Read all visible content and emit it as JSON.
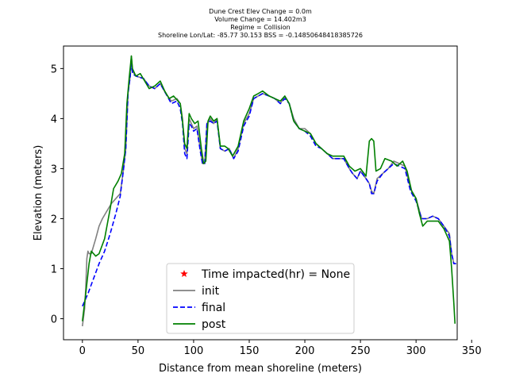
{
  "chart_data": {
    "type": "line",
    "title_lines": [
      "Dune Crest Elev Change = 0.0m",
      "Volume Change = 14.402m3",
      "Regime = Collision",
      "Shoreline Lon/Lat: -85.77 30.153   BSS = -0.14850648418385726"
    ],
    "xlabel": "Distance from mean shoreline (meters)",
    "ylabel": "Elevation (meters)",
    "xlim": [
      -17,
      337
    ],
    "ylim": [
      -0.42,
      5.45
    ],
    "xticks": [
      0,
      50,
      100,
      150,
      200,
      250,
      300,
      350
    ],
    "yticks": [
      0,
      1,
      2,
      3,
      4,
      5
    ],
    "legend": {
      "placement": "lower-center",
      "entries": [
        {
          "label": "Time impacted(hr) = None",
          "marker": "star",
          "color": "#ff0000"
        },
        {
          "label": "init",
          "style": "solid",
          "color": "#808080"
        },
        {
          "label": "final",
          "style": "dashed",
          "color": "#0000ff"
        },
        {
          "label": "post",
          "style": "solid",
          "color": "#008000"
        }
      ]
    },
    "series": [
      {
        "name": "init",
        "color": "#808080",
        "style": "solid",
        "points": [
          [
            0,
            -0.15
          ],
          [
            2,
            0.2
          ],
          [
            3,
            0.6
          ],
          [
            4,
            1.2
          ],
          [
            5,
            1.35
          ],
          [
            6,
            1.3
          ],
          [
            8,
            1.3
          ],
          [
            12,
            1.6
          ],
          [
            15,
            1.85
          ],
          [
            18,
            2.0
          ],
          [
            22,
            2.15
          ],
          [
            26,
            2.3
          ],
          [
            30,
            2.4
          ],
          [
            34,
            2.5
          ],
          [
            37,
            3.0
          ],
          [
            39,
            3.4
          ],
          [
            41,
            4.5
          ],
          [
            43,
            4.85
          ],
          [
            44,
            5.25
          ],
          [
            45,
            4.95
          ],
          [
            48,
            4.85
          ],
          [
            55,
            4.8
          ],
          [
            60,
            4.65
          ],
          [
            65,
            4.6
          ],
          [
            70,
            4.7
          ],
          [
            75,
            4.5
          ],
          [
            80,
            4.35
          ],
          [
            85,
            4.4
          ],
          [
            88,
            4.3
          ],
          [
            90,
            4.0
          ],
          [
            92,
            3.4
          ],
          [
            94,
            3.3
          ],
          [
            96,
            4.0
          ],
          [
            98,
            3.9
          ],
          [
            100,
            3.8
          ],
          [
            103,
            3.85
          ],
          [
            106,
            3.4
          ],
          [
            108,
            3.1
          ],
          [
            110,
            3.1
          ],
          [
            112,
            3.9
          ],
          [
            115,
            4.0
          ],
          [
            118,
            3.9
          ],
          [
            121,
            4.0
          ],
          [
            124,
            3.4
          ],
          [
            128,
            3.35
          ],
          [
            132,
            3.4
          ],
          [
            136,
            3.2
          ],
          [
            140,
            3.4
          ],
          [
            145,
            3.9
          ],
          [
            150,
            4.1
          ],
          [
            154,
            4.4
          ],
          [
            158,
            4.45
          ],
          [
            162,
            4.5
          ],
          [
            168,
            4.45
          ],
          [
            173,
            4.4
          ],
          [
            178,
            4.3
          ],
          [
            182,
            4.45
          ],
          [
            186,
            4.3
          ],
          [
            190,
            4.0
          ],
          [
            195,
            3.8
          ],
          [
            200,
            3.8
          ],
          [
            205,
            3.7
          ],
          [
            210,
            3.5
          ],
          [
            215,
            3.4
          ],
          [
            220,
            3.3
          ],
          [
            225,
            3.2
          ],
          [
            230,
            3.2
          ],
          [
            235,
            3.2
          ],
          [
            240,
            3.0
          ],
          [
            243,
            2.9
          ],
          [
            247,
            2.8
          ],
          [
            250,
            2.95
          ],
          [
            255,
            2.8
          ],
          [
            258,
            2.7
          ],
          [
            260,
            2.55
          ],
          [
            262,
            2.5
          ],
          [
            265,
            2.8
          ],
          [
            270,
            2.9
          ],
          [
            275,
            3.0
          ],
          [
            280,
            3.15
          ],
          [
            285,
            3.1
          ],
          [
            290,
            3.05
          ],
          [
            295,
            2.6
          ],
          [
            300,
            2.4
          ],
          [
            305,
            2.0
          ],
          [
            310,
            2.0
          ],
          [
            315,
            2.05
          ],
          [
            320,
            2.0
          ],
          [
            325,
            1.85
          ],
          [
            330,
            1.7
          ],
          [
            332,
            1.3
          ],
          [
            334,
            1.1
          ],
          [
            336,
            1.1
          ]
        ]
      },
      {
        "name": "final",
        "color": "#0000ff",
        "style": "dashed",
        "points": [
          [
            0,
            0.25
          ],
          [
            5,
            0.5
          ],
          [
            10,
            0.8
          ],
          [
            15,
            1.1
          ],
          [
            20,
            1.35
          ],
          [
            25,
            1.7
          ],
          [
            30,
            2.1
          ],
          [
            34,
            2.45
          ],
          [
            37,
            3.0
          ],
          [
            39,
            3.4
          ],
          [
            41,
            4.5
          ],
          [
            43,
            4.85
          ],
          [
            44,
            5.2
          ],
          [
            45,
            4.9
          ],
          [
            48,
            4.85
          ],
          [
            55,
            4.8
          ],
          [
            60,
            4.65
          ],
          [
            65,
            4.6
          ],
          [
            70,
            4.7
          ],
          [
            75,
            4.5
          ],
          [
            80,
            4.3
          ],
          [
            85,
            4.35
          ],
          [
            88,
            4.2
          ],
          [
            90,
            3.9
          ],
          [
            92,
            3.3
          ],
          [
            94,
            3.2
          ],
          [
            96,
            3.9
          ],
          [
            98,
            3.85
          ],
          [
            100,
            3.75
          ],
          [
            103,
            3.8
          ],
          [
            106,
            3.35
          ],
          [
            108,
            3.1
          ],
          [
            110,
            3.1
          ],
          [
            112,
            3.9
          ],
          [
            115,
            3.95
          ],
          [
            118,
            3.9
          ],
          [
            121,
            3.95
          ],
          [
            124,
            3.4
          ],
          [
            128,
            3.35
          ],
          [
            132,
            3.4
          ],
          [
            136,
            3.2
          ],
          [
            140,
            3.35
          ],
          [
            145,
            3.85
          ],
          [
            150,
            4.05
          ],
          [
            154,
            4.4
          ],
          [
            158,
            4.45
          ],
          [
            162,
            4.5
          ],
          [
            168,
            4.45
          ],
          [
            173,
            4.4
          ],
          [
            178,
            4.3
          ],
          [
            182,
            4.4
          ],
          [
            186,
            4.3
          ],
          [
            190,
            3.95
          ],
          [
            195,
            3.8
          ],
          [
            200,
            3.75
          ],
          [
            205,
            3.65
          ],
          [
            210,
            3.45
          ],
          [
            215,
            3.4
          ],
          [
            220,
            3.3
          ],
          [
            225,
            3.2
          ],
          [
            230,
            3.2
          ],
          [
            235,
            3.2
          ],
          [
            240,
            3.0
          ],
          [
            243,
            2.9
          ],
          [
            247,
            2.8
          ],
          [
            250,
            2.95
          ],
          [
            255,
            2.8
          ],
          [
            258,
            2.7
          ],
          [
            260,
            2.5
          ],
          [
            262,
            2.5
          ],
          [
            265,
            2.75
          ],
          [
            270,
            2.9
          ],
          [
            275,
            3.0
          ],
          [
            280,
            3.1
          ],
          [
            285,
            3.05
          ],
          [
            290,
            3.0
          ],
          [
            295,
            2.55
          ],
          [
            300,
            2.35
          ],
          [
            305,
            2.0
          ],
          [
            310,
            2.0
          ],
          [
            315,
            2.05
          ],
          [
            320,
            2.0
          ],
          [
            325,
            1.85
          ],
          [
            330,
            1.65
          ],
          [
            332,
            1.3
          ],
          [
            334,
            1.1
          ],
          [
            336,
            1.1
          ]
        ]
      },
      {
        "name": "post",
        "color": "#008000",
        "style": "solid",
        "points": [
          [
            0,
            -0.05
          ],
          [
            3,
            0.5
          ],
          [
            5,
            0.9
          ],
          [
            6,
            1.1
          ],
          [
            8,
            1.35
          ],
          [
            12,
            1.25
          ],
          [
            15,
            1.3
          ],
          [
            20,
            1.6
          ],
          [
            25,
            2.2
          ],
          [
            28,
            2.6
          ],
          [
            32,
            2.75
          ],
          [
            35,
            2.9
          ],
          [
            38,
            3.3
          ],
          [
            40,
            4.3
          ],
          [
            42,
            4.8
          ],
          [
            44,
            5.25
          ],
          [
            45,
            5.0
          ],
          [
            48,
            4.85
          ],
          [
            52,
            4.9
          ],
          [
            56,
            4.75
          ],
          [
            60,
            4.6
          ],
          [
            65,
            4.65
          ],
          [
            70,
            4.75
          ],
          [
            74,
            4.55
          ],
          [
            78,
            4.4
          ],
          [
            82,
            4.45
          ],
          [
            86,
            4.35
          ],
          [
            88,
            4.3
          ],
          [
            90,
            3.95
          ],
          [
            92,
            3.5
          ],
          [
            94,
            3.4
          ],
          [
            96,
            4.1
          ],
          [
            98,
            4.0
          ],
          [
            101,
            3.9
          ],
          [
            104,
            3.95
          ],
          [
            107,
            3.4
          ],
          [
            109,
            3.1
          ],
          [
            111,
            3.15
          ],
          [
            113,
            3.95
          ],
          [
            115,
            4.05
          ],
          [
            118,
            3.95
          ],
          [
            121,
            4.0
          ],
          [
            124,
            3.45
          ],
          [
            128,
            3.45
          ],
          [
            131,
            3.4
          ],
          [
            135,
            3.25
          ],
          [
            140,
            3.45
          ],
          [
            145,
            3.95
          ],
          [
            150,
            4.2
          ],
          [
            154,
            4.45
          ],
          [
            158,
            4.5
          ],
          [
            162,
            4.55
          ],
          [
            168,
            4.45
          ],
          [
            173,
            4.4
          ],
          [
            178,
            4.35
          ],
          [
            182,
            4.45
          ],
          [
            186,
            4.3
          ],
          [
            190,
            3.95
          ],
          [
            195,
            3.8
          ],
          [
            200,
            3.75
          ],
          [
            205,
            3.7
          ],
          [
            210,
            3.5
          ],
          [
            215,
            3.4
          ],
          [
            220,
            3.3
          ],
          [
            225,
            3.25
          ],
          [
            230,
            3.25
          ],
          [
            235,
            3.25
          ],
          [
            240,
            3.05
          ],
          [
            245,
            2.95
          ],
          [
            250,
            3.0
          ],
          [
            255,
            2.85
          ],
          [
            258,
            3.55
          ],
          [
            260,
            3.6
          ],
          [
            262,
            3.55
          ],
          [
            264,
            2.95
          ],
          [
            268,
            3.0
          ],
          [
            272,
            3.2
          ],
          [
            278,
            3.15
          ],
          [
            283,
            3.05
          ],
          [
            288,
            3.15
          ],
          [
            292,
            2.95
          ],
          [
            296,
            2.55
          ],
          [
            300,
            2.4
          ],
          [
            303,
            2.1
          ],
          [
            306,
            1.85
          ],
          [
            310,
            1.95
          ],
          [
            315,
            1.95
          ],
          [
            320,
            1.95
          ],
          [
            325,
            1.8
          ],
          [
            330,
            1.55
          ],
          [
            332,
            1.0
          ],
          [
            334,
            0.3
          ],
          [
            335,
            -0.1
          ]
        ]
      }
    ],
    "grid": false
  }
}
